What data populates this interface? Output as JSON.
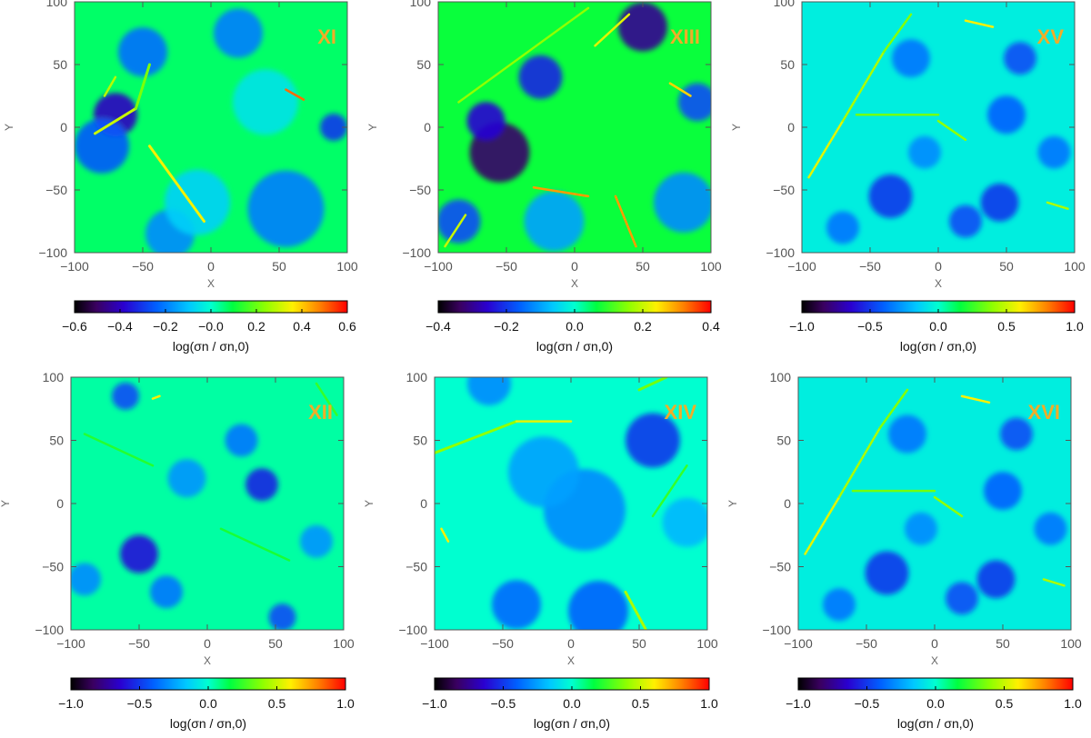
{
  "figure_title": "",
  "chart_data": [
    {
      "type": "heatmap",
      "panel_label": "XI",
      "xlabel": "X",
      "ylabel": "Y",
      "xlim": [
        -100,
        100
      ],
      "ylim": [
        -100,
        100
      ],
      "xticks": [
        "−100",
        "−50",
        "0",
        "50",
        "100"
      ],
      "yticks": [
        "100",
        "50",
        "0",
        "−50",
        "−100"
      ],
      "colorbar": {
        "label": "log(σn / σn,0)",
        "range": [
          -0.6,
          0.6
        ],
        "ticks": [
          "−0.6",
          "−0.4",
          "−0.2",
          "−0.0",
          "0.2",
          "0.4",
          "0.6"
        ]
      },
      "background_level": 0.07,
      "features": [
        {
          "kind": "blob",
          "x": -70,
          "y": 10,
          "r": 16,
          "v": -0.4
        },
        {
          "kind": "blob",
          "x": -80,
          "y": -15,
          "r": 20,
          "v": -0.25
        },
        {
          "kind": "blob",
          "x": -50,
          "y": 60,
          "r": 18,
          "v": -0.22
        },
        {
          "kind": "blob",
          "x": 20,
          "y": 75,
          "r": 18,
          "v": -0.2
        },
        {
          "kind": "blob",
          "x": 55,
          "y": -65,
          "r": 28,
          "v": -0.2
        },
        {
          "kind": "blob",
          "x": 90,
          "y": 0,
          "r": 10,
          "v": -0.3
        },
        {
          "kind": "blob",
          "x": -30,
          "y": -85,
          "r": 18,
          "v": -0.18
        },
        {
          "kind": "blob",
          "x": -10,
          "y": -60,
          "r": 24,
          "v": -0.08
        },
        {
          "kind": "blob",
          "x": 40,
          "y": 20,
          "r": 24,
          "v": -0.05
        },
        {
          "kind": "filament",
          "x1": -85,
          "y1": -5,
          "x2": -55,
          "y2": 15,
          "w": 3,
          "v": 0.3
        },
        {
          "kind": "filament",
          "x1": -55,
          "y1": 15,
          "x2": -45,
          "y2": 50,
          "w": 3,
          "v": 0.22
        },
        {
          "kind": "filament",
          "x1": -45,
          "y1": -15,
          "x2": -5,
          "y2": -75,
          "w": 3,
          "v": 0.35
        },
        {
          "kind": "filament",
          "x1": 55,
          "y1": 30,
          "x2": 68,
          "y2": 22,
          "w": 2.5,
          "v": 0.5
        },
        {
          "kind": "filament",
          "x1": -78,
          "y1": 25,
          "x2": -70,
          "y2": 40,
          "w": 2.5,
          "v": 0.28
        }
      ]
    },
    {
      "type": "heatmap",
      "panel_label": "XIII",
      "xlabel": "X",
      "ylabel": "Y",
      "xlim": [
        -100,
        100
      ],
      "ylim": [
        -100,
        100
      ],
      "xticks": [
        "−100",
        "−50",
        "0",
        "50",
        "100"
      ],
      "yticks": [
        "100",
        "50",
        "0",
        "−50",
        "−100"
      ],
      "colorbar": {
        "label": "log(σn / σn,0)",
        "range": [
          -0.4,
          0.4
        ],
        "ticks": [
          "−0.4",
          "−0.2",
          "0.0",
          "0.2",
          "0.4"
        ]
      },
      "background_level": 0.07,
      "features": [
        {
          "kind": "blob",
          "x": -55,
          "y": -20,
          "r": 22,
          "v": -0.33
        },
        {
          "kind": "blob",
          "x": -65,
          "y": 5,
          "r": 14,
          "v": -0.25
        },
        {
          "kind": "blob",
          "x": 50,
          "y": 80,
          "r": 18,
          "v": -0.3
        },
        {
          "kind": "blob",
          "x": -25,
          "y": 40,
          "r": 16,
          "v": -0.22
        },
        {
          "kind": "blob",
          "x": -85,
          "y": -75,
          "r": 16,
          "v": -0.18
        },
        {
          "kind": "blob",
          "x": 90,
          "y": 20,
          "r": 14,
          "v": -0.18
        },
        {
          "kind": "blob",
          "x": -15,
          "y": -75,
          "r": 22,
          "v": -0.1
        },
        {
          "kind": "blob",
          "x": 80,
          "y": -60,
          "r": 22,
          "v": -0.12
        },
        {
          "kind": "filament",
          "x1": -85,
          "y1": 20,
          "x2": 10,
          "y2": 95,
          "w": 2.5,
          "v": 0.16
        },
        {
          "kind": "filament",
          "x1": -30,
          "y1": -48,
          "x2": 10,
          "y2": -55,
          "w": 2.5,
          "v": 0.3
        },
        {
          "kind": "filament",
          "x1": 30,
          "y1": -55,
          "x2": 45,
          "y2": -95,
          "w": 2.5,
          "v": 0.3
        },
        {
          "kind": "filament",
          "x1": 15,
          "y1": 65,
          "x2": 40,
          "y2": 90,
          "w": 2.5,
          "v": 0.22
        },
        {
          "kind": "filament",
          "x1": 70,
          "y1": 35,
          "x2": 85,
          "y2": 25,
          "w": 2.5,
          "v": 0.26
        },
        {
          "kind": "filament",
          "x1": -95,
          "y1": -95,
          "x2": -80,
          "y2": -70,
          "w": 2.5,
          "v": 0.2
        }
      ]
    },
    {
      "type": "heatmap",
      "panel_label": "XV",
      "xlabel": "X",
      "ylabel": "Y",
      "xlim": [
        -100,
        100
      ],
      "ylim": [
        -100,
        100
      ],
      "xticks": [
        "−100",
        "−50",
        "0",
        "50",
        "100"
      ],
      "yticks": [
        "100",
        "50",
        "0",
        "−50",
        "−100"
      ],
      "colorbar": {
        "label": "log(σn / σn,0)",
        "range": [
          -1.0,
          1.0
        ],
        "ticks": [
          "−1.0",
          "−0.5",
          "0.0",
          "0.5",
          "1.0"
        ]
      },
      "background_level": -0.05,
      "features": [
        {
          "kind": "blob",
          "x": -35,
          "y": -55,
          "r": 16,
          "v": -0.5
        },
        {
          "kind": "blob",
          "x": 45,
          "y": -60,
          "r": 14,
          "v": -0.5
        },
        {
          "kind": "blob",
          "x": 60,
          "y": 55,
          "r": 12,
          "v": -0.45
        },
        {
          "kind": "blob",
          "x": 20,
          "y": -75,
          "r": 12,
          "v": -0.45
        },
        {
          "kind": "blob",
          "x": -20,
          "y": 55,
          "r": 14,
          "v": -0.35
        },
        {
          "kind": "blob",
          "x": 50,
          "y": 10,
          "r": 14,
          "v": -0.4
        },
        {
          "kind": "blob",
          "x": -70,
          "y": -80,
          "r": 12,
          "v": -0.35
        },
        {
          "kind": "blob",
          "x": 85,
          "y": -20,
          "r": 12,
          "v": -0.35
        },
        {
          "kind": "blob",
          "x": -10,
          "y": -20,
          "r": 12,
          "v": -0.3
        },
        {
          "kind": "filament",
          "x1": -95,
          "y1": -40,
          "x2": -70,
          "y2": 5,
          "w": 2.5,
          "v": 0.55
        },
        {
          "kind": "filament",
          "x1": -70,
          "y1": 5,
          "x2": -40,
          "y2": 60,
          "w": 2.5,
          "v": 0.45
        },
        {
          "kind": "filament",
          "x1": -40,
          "y1": 60,
          "x2": -20,
          "y2": 90,
          "w": 2.5,
          "v": 0.38
        },
        {
          "kind": "filament",
          "x1": 20,
          "y1": 85,
          "x2": 40,
          "y2": 80,
          "w": 2.5,
          "v": 0.6
        },
        {
          "kind": "filament",
          "x1": -60,
          "y1": 10,
          "x2": 0,
          "y2": 10,
          "w": 2.5,
          "v": 0.35
        },
        {
          "kind": "filament",
          "x1": 0,
          "y1": 5,
          "x2": 20,
          "y2": -10,
          "w": 2.5,
          "v": 0.4
        },
        {
          "kind": "filament",
          "x1": 80,
          "y1": -60,
          "x2": 95,
          "y2": -65,
          "w": 2.5,
          "v": 0.45
        }
      ]
    },
    {
      "type": "heatmap",
      "panel_label": "XII",
      "xlabel": "X",
      "ylabel": "Y",
      "xlim": [
        -100,
        100
      ],
      "ylim": [
        -100,
        100
      ],
      "xticks": [
        "−100",
        "−50",
        "0",
        "50",
        "100"
      ],
      "yticks": [
        "100",
        "50",
        "0",
        "−50",
        "−100"
      ],
      "colorbar": {
        "label": "log(σn / σn,0)",
        "range": [
          -1.0,
          1.0
        ],
        "ticks": [
          "−1.0",
          "−0.5",
          "0.0",
          "0.5",
          "1.0"
        ]
      },
      "background_level": 0.05,
      "features": [
        {
          "kind": "blob",
          "x": -50,
          "y": -40,
          "r": 14,
          "v": -0.6
        },
        {
          "kind": "blob",
          "x": 40,
          "y": 15,
          "r": 12,
          "v": -0.55
        },
        {
          "kind": "blob",
          "x": 55,
          "y": -90,
          "r": 10,
          "v": -0.45
        },
        {
          "kind": "blob",
          "x": -60,
          "y": 85,
          "r": 10,
          "v": -0.45
        },
        {
          "kind": "blob",
          "x": 25,
          "y": 50,
          "r": 12,
          "v": -0.35
        },
        {
          "kind": "blob",
          "x": -30,
          "y": -70,
          "r": 12,
          "v": -0.35
        },
        {
          "kind": "blob",
          "x": -90,
          "y": -60,
          "r": 12,
          "v": -0.3
        },
        {
          "kind": "blob",
          "x": -15,
          "y": 20,
          "r": 14,
          "v": -0.28
        },
        {
          "kind": "blob",
          "x": 80,
          "y": -30,
          "r": 12,
          "v": -0.28
        },
        {
          "kind": "filament",
          "x1": -40,
          "y1": 83,
          "x2": -35,
          "y2": 85,
          "w": 2.5,
          "v": 0.6
        },
        {
          "kind": "filament",
          "x1": -90,
          "y1": 55,
          "x2": -40,
          "y2": 30,
          "w": 2.5,
          "v": 0.22
        },
        {
          "kind": "filament",
          "x1": 10,
          "y1": -20,
          "x2": 60,
          "y2": -45,
          "w": 2.5,
          "v": 0.2
        },
        {
          "kind": "filament",
          "x1": 80,
          "y1": 95,
          "x2": 95,
          "y2": 70,
          "w": 2.5,
          "v": 0.25
        }
      ]
    },
    {
      "type": "heatmap",
      "panel_label": "XIV",
      "xlabel": "X",
      "ylabel": "Y",
      "xlim": [
        -100,
        100
      ],
      "ylim": [
        -100,
        100
      ],
      "xticks": [
        "−100",
        "−50",
        "0",
        "50",
        "100"
      ],
      "yticks": [
        "100",
        "50",
        "0",
        "−50",
        "−100"
      ],
      "colorbar": {
        "label": "log(σn / σn,0)",
        "range": [
          -1.0,
          1.0
        ],
        "ticks": [
          "−1.0",
          "−0.5",
          "0.0",
          "0.5",
          "1.0"
        ]
      },
      "background_level": 0.0,
      "features": [
        {
          "kind": "blob",
          "x": 60,
          "y": 50,
          "r": 20,
          "v": -0.5
        },
        {
          "kind": "blob",
          "x": 20,
          "y": -85,
          "r": 22,
          "v": -0.4
        },
        {
          "kind": "blob",
          "x": -40,
          "y": -80,
          "r": 18,
          "v": -0.38
        },
        {
          "kind": "blob",
          "x": 10,
          "y": -5,
          "r": 30,
          "v": -0.3
        },
        {
          "kind": "blob",
          "x": -20,
          "y": 25,
          "r": 26,
          "v": -0.25
        },
        {
          "kind": "blob",
          "x": -60,
          "y": 95,
          "r": 16,
          "v": -0.3
        },
        {
          "kind": "blob",
          "x": 85,
          "y": -15,
          "r": 18,
          "v": -0.2
        },
        {
          "kind": "filament",
          "x1": -100,
          "y1": 40,
          "x2": -40,
          "y2": 65,
          "w": 3,
          "v": 0.4
        },
        {
          "kind": "filament",
          "x1": -40,
          "y1": 65,
          "x2": 0,
          "y2": 65,
          "w": 2.5,
          "v": 0.55
        },
        {
          "kind": "filament",
          "x1": -95,
          "y1": -20,
          "x2": -90,
          "y2": -30,
          "w": 2.5,
          "v": 0.6
        },
        {
          "kind": "filament",
          "x1": 40,
          "y1": -70,
          "x2": 55,
          "y2": -100,
          "w": 3,
          "v": 0.45
        },
        {
          "kind": "filament",
          "x1": 60,
          "y1": -10,
          "x2": 85,
          "y2": 30,
          "w": 2.5,
          "v": 0.25
        },
        {
          "kind": "filament",
          "x1": 50,
          "y1": 90,
          "x2": 70,
          "y2": 100,
          "w": 3,
          "v": 0.35
        }
      ]
    },
    {
      "type": "heatmap",
      "panel_label": "XVI",
      "xlabel": "X",
      "ylabel": "Y",
      "xlim": [
        -100,
        100
      ],
      "ylim": [
        -100,
        100
      ],
      "xticks": [
        "−100",
        "−50",
        "0",
        "50",
        "100"
      ],
      "yticks": [
        "100",
        "50",
        "0",
        "−50",
        "−100"
      ],
      "colorbar": {
        "label": "log(σn / σn,0)",
        "range": [
          -1.0,
          1.0
        ],
        "ticks": [
          "−1.0",
          "−0.5",
          "0.0",
          "0.5",
          "1.0"
        ]
      },
      "background_level": -0.05,
      "features": [
        {
          "kind": "blob",
          "x": -35,
          "y": -55,
          "r": 16,
          "v": -0.5
        },
        {
          "kind": "blob",
          "x": 45,
          "y": -60,
          "r": 14,
          "v": -0.5
        },
        {
          "kind": "blob",
          "x": 60,
          "y": 55,
          "r": 12,
          "v": -0.45
        },
        {
          "kind": "blob",
          "x": 20,
          "y": -75,
          "r": 12,
          "v": -0.45
        },
        {
          "kind": "blob",
          "x": -20,
          "y": 55,
          "r": 14,
          "v": -0.35
        },
        {
          "kind": "blob",
          "x": 50,
          "y": 10,
          "r": 14,
          "v": -0.4
        },
        {
          "kind": "blob",
          "x": -70,
          "y": -80,
          "r": 12,
          "v": -0.35
        },
        {
          "kind": "blob",
          "x": 85,
          "y": -20,
          "r": 12,
          "v": -0.35
        },
        {
          "kind": "blob",
          "x": -10,
          "y": -20,
          "r": 12,
          "v": -0.3
        },
        {
          "kind": "filament",
          "x1": -95,
          "y1": -40,
          "x2": -70,
          "y2": 5,
          "w": 2.5,
          "v": 0.55
        },
        {
          "kind": "filament",
          "x1": -70,
          "y1": 5,
          "x2": -40,
          "y2": 60,
          "w": 2.5,
          "v": 0.45
        },
        {
          "kind": "filament",
          "x1": -40,
          "y1": 60,
          "x2": -20,
          "y2": 90,
          "w": 2.5,
          "v": 0.38
        },
        {
          "kind": "filament",
          "x1": 20,
          "y1": 85,
          "x2": 40,
          "y2": 80,
          "w": 2.5,
          "v": 0.6
        },
        {
          "kind": "filament",
          "x1": -60,
          "y1": 10,
          "x2": 0,
          "y2": 10,
          "w": 2.5,
          "v": 0.35
        },
        {
          "kind": "filament",
          "x1": 0,
          "y1": 5,
          "x2": 20,
          "y2": -10,
          "w": 2.5,
          "v": 0.4
        },
        {
          "kind": "filament",
          "x1": 80,
          "y1": -60,
          "x2": 95,
          "y2": -65,
          "w": 2.5,
          "v": 0.45
        }
      ]
    }
  ]
}
